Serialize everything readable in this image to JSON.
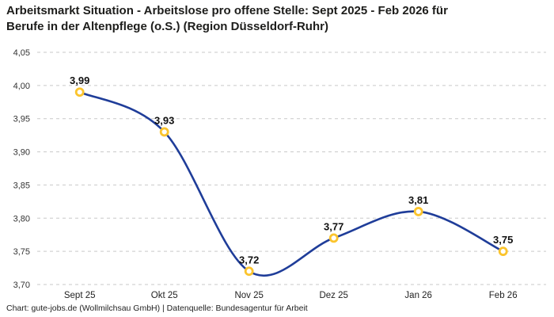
{
  "header": {
    "title_line1": "Arbeitsmarkt Situation - Arbeitslose pro offene Stelle: Sept 2025 - Feb 2026 für",
    "title_line2": "Berufe in der Altenpflege (o.S.) (Region Düsseldorf-Ruhr)"
  },
  "footer": {
    "credit": "Chart: gute-jobs.de (Wollmilchsau GmbH) | Datenquelle: Bundesagentur für Arbeit"
  },
  "chart_data": {
    "type": "line",
    "title": "Arbeitsmarkt Situation - Arbeitslose pro offene Stelle: Sept 2025 - Feb 2026 für Berufe in der Altenpflege (o.S.) (Region Düsseldorf-Ruhr)",
    "categories": [
      "Sept 25",
      "Okt 25",
      "Nov 25",
      "Dez 25",
      "Jan 26",
      "Feb 26"
    ],
    "values": [
      3.99,
      3.93,
      3.72,
      3.77,
      3.81,
      3.75
    ],
    "value_labels": [
      "3,99",
      "3,93",
      "3,72",
      "3,77",
      "3,81",
      "3,75"
    ],
    "y_tick_labels": [
      "4,05",
      "4,00",
      "3,95",
      "3,90",
      "3,85",
      "3,80",
      "3,75",
      "3,70"
    ],
    "y_tick_values": [
      4.05,
      4.0,
      3.95,
      3.9,
      3.85,
      3.8,
      3.75,
      3.7
    ],
    "ylim": [
      3.7,
      4.05
    ],
    "xlabel": "",
    "ylabel": "",
    "grid": "horizontal-dashed",
    "legend": "none",
    "colors": {
      "line": "#1f3d99",
      "marker_stroke": "#fbc42d",
      "marker_fill": "#ffffff",
      "gridline": "#c9c9c9",
      "title_text": "#1d1d1b",
      "tick_text": "#333333",
      "background": "#ffffff"
    }
  }
}
